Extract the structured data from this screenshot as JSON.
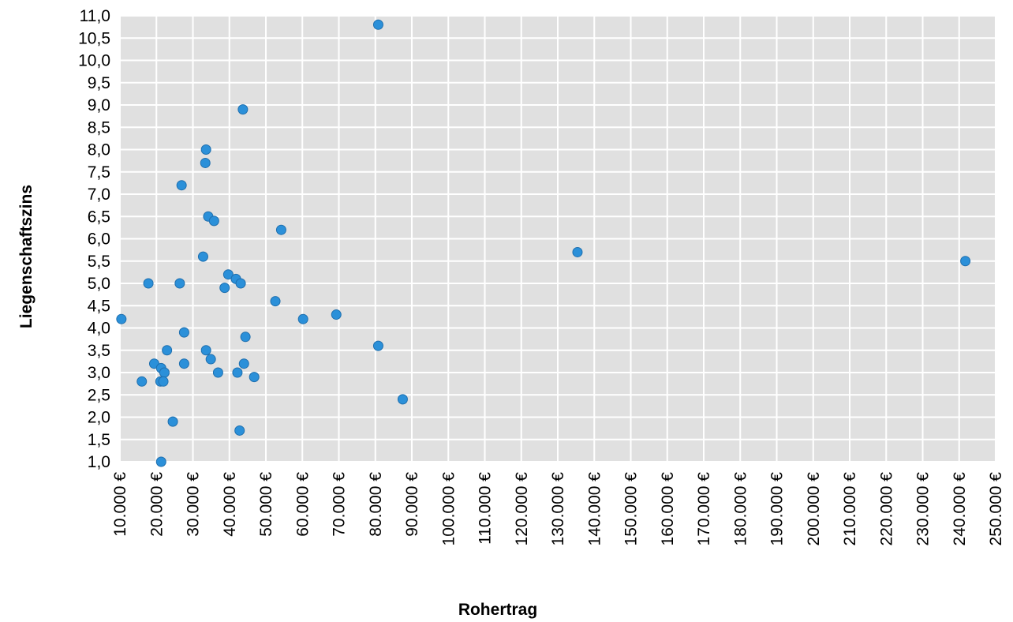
{
  "chart_data": {
    "type": "scatter",
    "xlabel": "Rohertrag",
    "ylabel": "Liegenschaftszins",
    "xlim": [
      10000,
      250000
    ],
    "ylim": [
      1.0,
      11.0
    ],
    "x_ticks": [
      10000,
      20000,
      30000,
      40000,
      50000,
      60000,
      70000,
      80000,
      90000,
      100000,
      110000,
      120000,
      130000,
      140000,
      150000,
      160000,
      170000,
      180000,
      190000,
      200000,
      210000,
      220000,
      230000,
      240000,
      250000
    ],
    "x_tick_labels": [
      "10.000 €",
      "20.000 €",
      "30.000 €",
      "40.000 €",
      "50.000 €",
      "60.000 €",
      "70.000 €",
      "80.000 €",
      "90.000 €",
      "100.000 €",
      "110.000 €",
      "120.000 €",
      "130.000 €",
      "140.000 €",
      "150.000 €",
      "160.000 €",
      "170.000 €",
      "180.000 €",
      "190.000 €",
      "200.000 €",
      "210.000 €",
      "220.000 €",
      "230.000 €",
      "240.000 €",
      "250.000 €"
    ],
    "y_ticks": [
      1.0,
      1.5,
      2.0,
      2.5,
      3.0,
      3.5,
      4.0,
      4.5,
      5.0,
      5.5,
      6.0,
      6.5,
      7.0,
      7.5,
      8.0,
      8.5,
      9.0,
      9.5,
      10.0,
      10.5,
      11.0
    ],
    "y_tick_labels": [
      "1,0",
      "1,5",
      "2,0",
      "2,5",
      "3,0",
      "3,5",
      "4,0",
      "4,5",
      "5,0",
      "5,5",
      "6,0",
      "6,5",
      "7,0",
      "7,5",
      "8,0",
      "8,5",
      "9,0",
      "9,5",
      "10,0",
      "10,5",
      "11,0"
    ],
    "grid": true,
    "marker_color": "#2b90d9",
    "marker_edge_color": "#1f6fae",
    "plot_background": "#e0e0e0",
    "grid_color": "#ffffff",
    "points": [
      {
        "x": 80800,
        "y": 10.8
      },
      {
        "x": 43700,
        "y": 8.9
      },
      {
        "x": 33600,
        "y": 8.0
      },
      {
        "x": 33400,
        "y": 7.7
      },
      {
        "x": 26900,
        "y": 7.2
      },
      {
        "x": 34200,
        "y": 6.5
      },
      {
        "x": 35800,
        "y": 6.4
      },
      {
        "x": 54200,
        "y": 6.2
      },
      {
        "x": 135400,
        "y": 5.7
      },
      {
        "x": 241700,
        "y": 5.5
      },
      {
        "x": 32800,
        "y": 5.6
      },
      {
        "x": 39700,
        "y": 5.2
      },
      {
        "x": 41800,
        "y": 5.1
      },
      {
        "x": 43100,
        "y": 5.0
      },
      {
        "x": 26400,
        "y": 5.0
      },
      {
        "x": 17800,
        "y": 5.0
      },
      {
        "x": 38700,
        "y": 4.9
      },
      {
        "x": 52600,
        "y": 4.6
      },
      {
        "x": 69300,
        "y": 4.3
      },
      {
        "x": 10400,
        "y": 4.2
      },
      {
        "x": 60200,
        "y": 4.2
      },
      {
        "x": 27600,
        "y": 3.9
      },
      {
        "x": 44400,
        "y": 3.8
      },
      {
        "x": 80800,
        "y": 3.6
      },
      {
        "x": 22900,
        "y": 3.5
      },
      {
        "x": 33600,
        "y": 3.5
      },
      {
        "x": 34900,
        "y": 3.3
      },
      {
        "x": 44000,
        "y": 3.2
      },
      {
        "x": 19400,
        "y": 3.2
      },
      {
        "x": 27600,
        "y": 3.2
      },
      {
        "x": 21300,
        "y": 3.1
      },
      {
        "x": 22200,
        "y": 3.0
      },
      {
        "x": 36900,
        "y": 3.0
      },
      {
        "x": 42200,
        "y": 3.0
      },
      {
        "x": 46800,
        "y": 2.9
      },
      {
        "x": 16000,
        "y": 2.8
      },
      {
        "x": 21100,
        "y": 2.8
      },
      {
        "x": 21900,
        "y": 2.8
      },
      {
        "x": 87500,
        "y": 2.4
      },
      {
        "x": 24500,
        "y": 1.9
      },
      {
        "x": 42800,
        "y": 1.7
      },
      {
        "x": 21300,
        "y": 1.0
      }
    ]
  }
}
